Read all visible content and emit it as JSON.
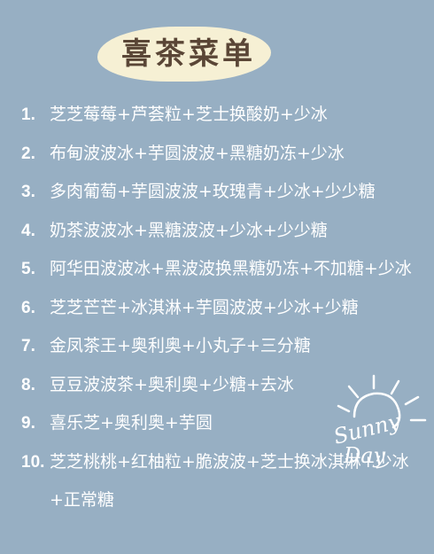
{
  "title": "喜茶菜单",
  "menu": [
    {
      "num": "1.",
      "text": "芝芝莓莓+芦荟粒+芝士换酸奶+少冰"
    },
    {
      "num": "2.",
      "text": "布甸波波冰+芋圆波波+黑糖奶冻+少冰"
    },
    {
      "num": "3.",
      "text": "多肉葡萄+芋圆波波+玫瑰青+少冰+少少糖"
    },
    {
      "num": "4.",
      "text": "奶茶波波冰+黑糖波波+少冰+少少糖"
    },
    {
      "num": "5.",
      "text": "阿华田波波冰+黑波波换黑糖奶冻+不加糖+少冰"
    },
    {
      "num": "6.",
      "text": "芝芝芒芒+冰淇淋+芋圆波波+少冰+少糖"
    },
    {
      "num": "7.",
      "text": "金凤茶王+奥利奥+小丸子+三分糖"
    },
    {
      "num": "8.",
      "text": "豆豆波波茶+奥利奥+少糖+去冰"
    },
    {
      "num": "9.",
      "text": "喜乐芝+奥利奥+芋圆"
    },
    {
      "num": "10.",
      "text": "芝芝桃桃+红柚粒+脆波波+芝士换冰淇淋+少冰+正常糖"
    }
  ],
  "sticker": {
    "line1": "Sunny",
    "line2": "Day"
  }
}
